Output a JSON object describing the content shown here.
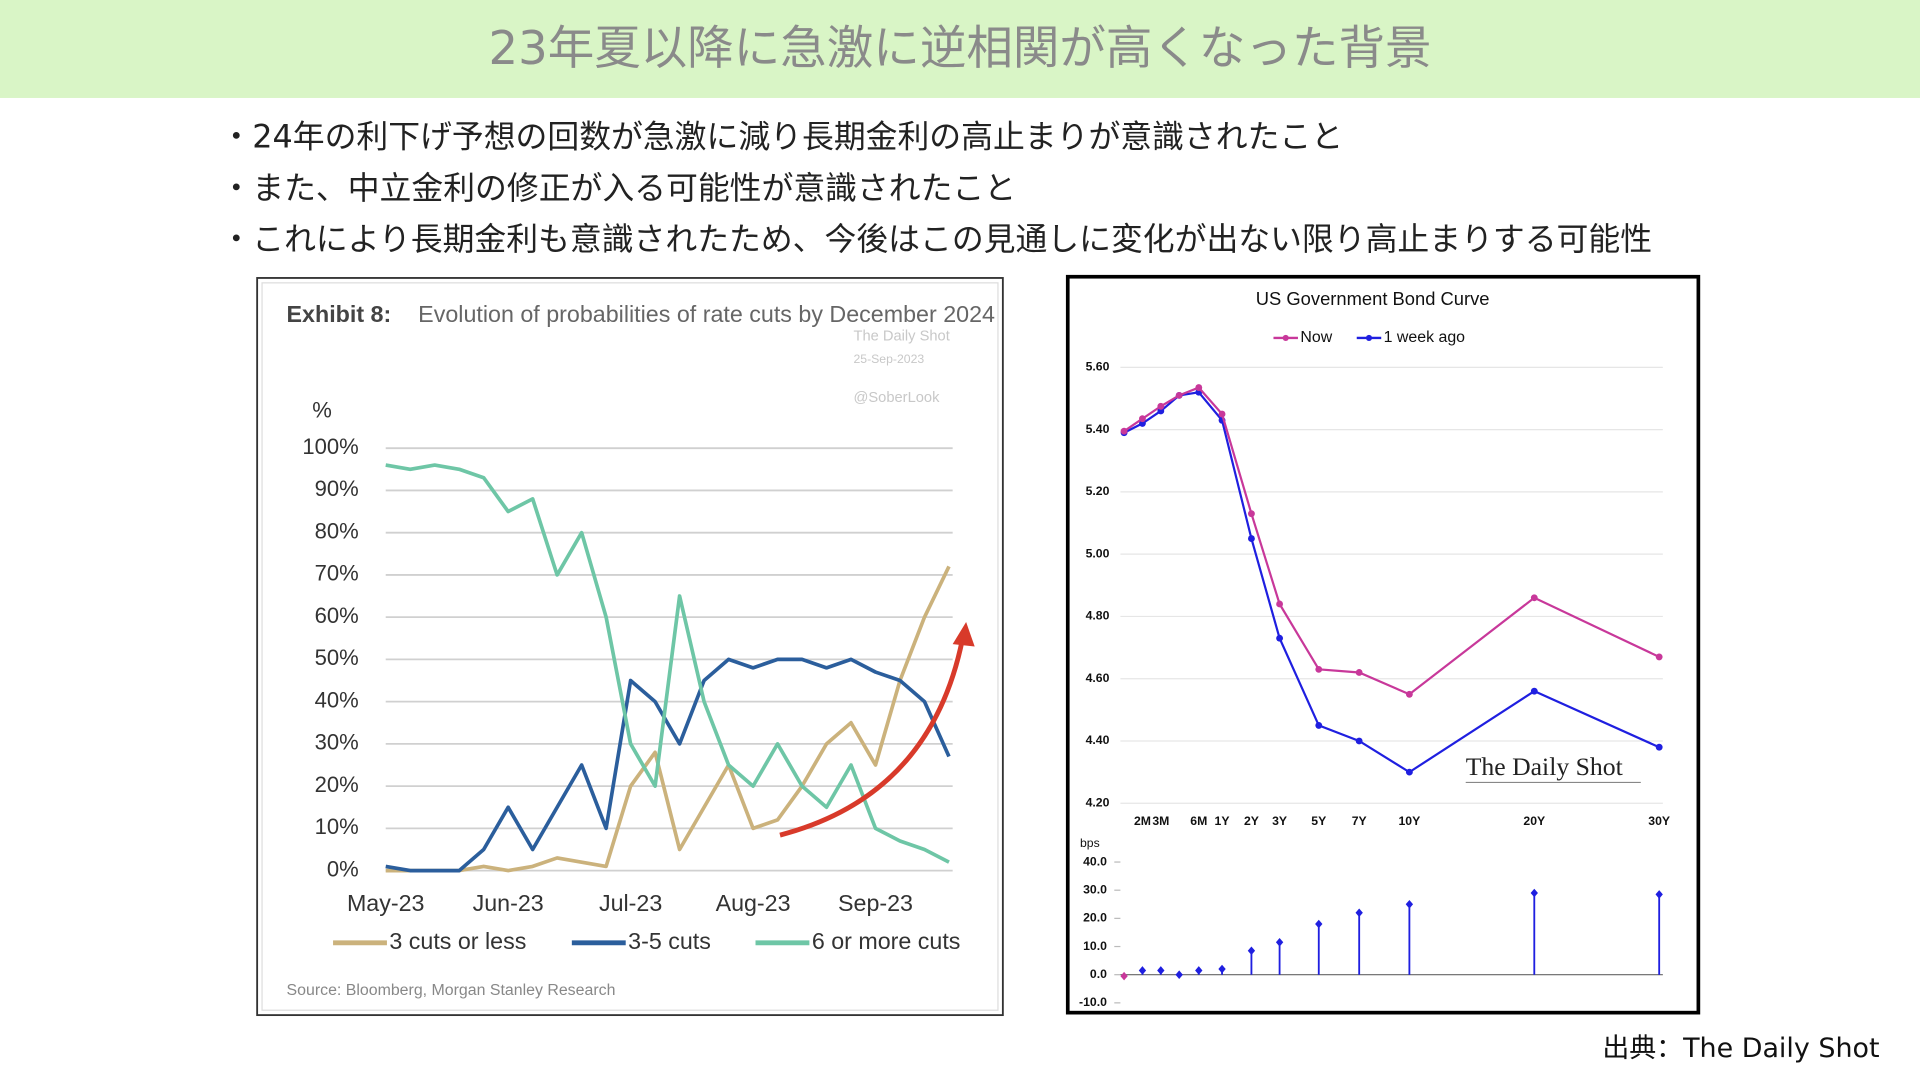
{
  "header": {
    "title": "23年夏以降に急激に逆相関が高くなった背景"
  },
  "bullets": [
    "・24年の利下げ予想の回数が急激に減り長期金利の高止まりが意識されたこと",
    "・また、中立金利の修正が入る可能性が意識されたこと",
    "・これにより長期金利も意識されたため、今後はこの見通しに変化が出ない限り高止まりする可能性"
  ],
  "chart_data": [
    {
      "type": "line",
      "label": "Exhibit 8:",
      "title": "Evolution of probabilities of rate cuts by December 2024",
      "y_label": "%",
      "annotations": [
        "The Daily Shot",
        "25-Sep-2023",
        "@SoberLook"
      ],
      "source": "Source: Bloomberg, Morgan Stanley Research",
      "categories": [
        "May-23",
        null,
        null,
        null,
        null,
        "Jun-23",
        null,
        null,
        null,
        null,
        "Jul-23",
        null,
        null,
        null,
        null,
        "Aug-23",
        null,
        null,
        null,
        null,
        "Sep-23",
        null,
        null,
        null
      ],
      "series": [
        {
          "name": "3 cuts or less",
          "color": "#cbb27c",
          "values": [
            0,
            0,
            0,
            0,
            1,
            0,
            1,
            3,
            2,
            1,
            20,
            28,
            5,
            15,
            25,
            10,
            12,
            20,
            30,
            35,
            25,
            45,
            60,
            72
          ]
        },
        {
          "name": "3-5 cuts",
          "color": "#2b5e9c",
          "values": [
            1,
            0,
            0,
            0,
            5,
            15,
            5,
            15,
            25,
            10,
            45,
            40,
            30,
            45,
            50,
            48,
            50,
            50,
            48,
            50,
            47,
            45,
            40,
            27
          ]
        },
        {
          "name": "6 or more cuts",
          "color": "#6ec6a6",
          "values": [
            96,
            95,
            96,
            95,
            93,
            85,
            88,
            70,
            80,
            60,
            30,
            20,
            65,
            40,
            25,
            20,
            30,
            20,
            15,
            25,
            10,
            7,
            5,
            2
          ]
        }
      ],
      "ylim": [
        0,
        100
      ],
      "yticks": [
        {
          "value": 0,
          "label": "0%"
        },
        {
          "value": 10,
          "label": "10%"
        },
        {
          "value": 20,
          "label": "20%"
        },
        {
          "value": 30,
          "label": "30%"
        },
        {
          "value": 40,
          "label": "40%"
        },
        {
          "value": 50,
          "label": "50%"
        },
        {
          "value": 60,
          "label": "60%"
        },
        {
          "value": 70,
          "label": "70%"
        },
        {
          "value": 80,
          "label": "80%"
        },
        {
          "value": 90,
          "label": "90%"
        },
        {
          "value": 100,
          "label": "100%"
        }
      ],
      "grid": true,
      "legend": "bottom"
    },
    {
      "type": "line",
      "title": "US Government Bond Curve",
      "annotations": [
        "The Daily Shot"
      ],
      "categories": [
        null,
        "2M",
        "3M",
        null,
        "6M",
        "1Y",
        "2Y",
        "3Y",
        "5Y",
        "7Y",
        "10Y",
        "20Y",
        "30Y"
      ],
      "series": [
        {
          "name": "Now",
          "color": "#c8389a",
          "values": [
            5.395,
            5.435,
            5.475,
            5.51,
            5.535,
            5.45,
            5.13,
            4.84,
            4.63,
            4.62,
            4.55,
            4.86,
            4.67
          ]
        },
        {
          "name": "1 week ago",
          "color": "#1f1fe0",
          "values": [
            5.39,
            5.42,
            5.46,
            5.51,
            5.52,
            5.43,
            5.05,
            4.73,
            4.45,
            4.4,
            4.3,
            4.56,
            4.38
          ]
        }
      ],
      "ylim": [
        4.2,
        5.6
      ],
      "yticks": [
        {
          "value": 4.2,
          "label": "4.20"
        },
        {
          "value": 4.4,
          "label": "4.40"
        },
        {
          "value": 4.6,
          "label": "4.60"
        },
        {
          "value": 4.8,
          "label": "4.80"
        },
        {
          "value": 5.0,
          "label": "5.00"
        },
        {
          "value": 5.2,
          "label": "5.20"
        },
        {
          "value": 5.4,
          "label": "5.40"
        },
        {
          "value": 5.6,
          "label": "5.60"
        }
      ],
      "grid": true,
      "legend": "top"
    },
    {
      "type": "stem",
      "y_label": "bps",
      "values": [
        -0.5,
        1.5,
        1.5,
        0,
        1.5,
        2,
        8.5,
        11.5,
        18,
        22,
        25,
        29,
        28.5
      ],
      "color": "#1f1fe0",
      "ylim": [
        -10,
        40
      ],
      "yticks": [
        {
          "value": -10,
          "label": "-10.0"
        },
        {
          "value": 0,
          "label": "0.0"
        },
        {
          "value": 10,
          "label": "10.0"
        },
        {
          "value": 20,
          "label": "20.0"
        },
        {
          "value": 30,
          "label": "30.0"
        },
        {
          "value": 40,
          "label": "40.0"
        }
      ]
    }
  ],
  "source": "出典：The Daily Shot"
}
